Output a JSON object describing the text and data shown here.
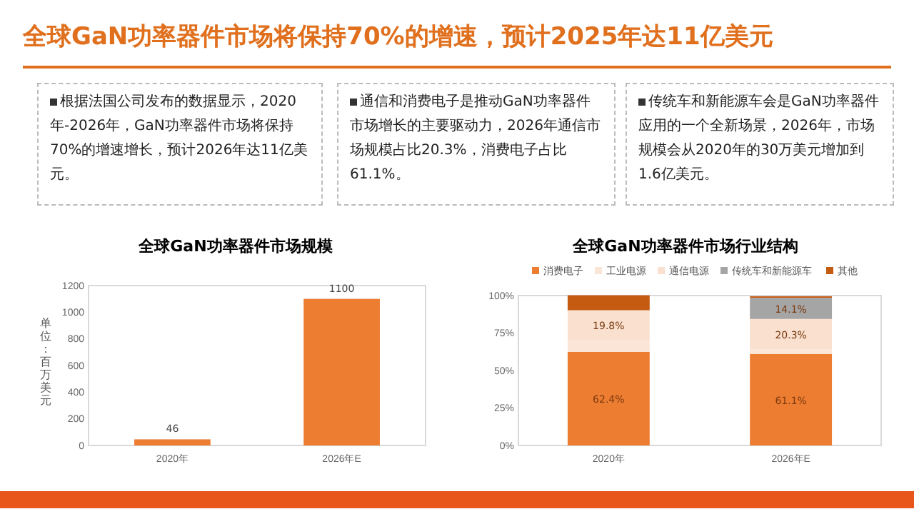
{
  "chart_data": [
    {
      "type": "other",
      "title": "全球GaN功率器件市场将保持70%的增速，预计2025年达11亿美元",
      "annotations": [
        "根据法国公司发布的数据显示，2020年-2026年，GaN功率器件市场将保持70%的增速增长，预计2026年达11亿美元。",
        "通信和消费电子是推动GaN功率器件市场增长的主要驱动力，2026年通信市场规模占比20.3%，消费电子占比61.1%。",
        "传统车和新能源车会是GaN功率器件应用的一个全新场景，2026年，市场规模会从2020年的30万美元增加到1.6亿美元。"
      ]
    },
    {
      "type": "bar",
      "title": "全球GaN功率器件市场规模",
      "ylabel": "单位：百万美元",
      "categories": [
        "2020年",
        "2026年E"
      ],
      "values": [
        46,
        1100
      ],
      "color": "#ed7d31",
      "ylim": [
        0,
        1200
      ],
      "yticks": [
        0,
        200,
        400,
        600,
        800,
        1000,
        1200
      ],
      "data_labels": true
    },
    {
      "type": "bar",
      "title": "全球GaN功率器件市场行业结构",
      "stacked": true,
      "legend": "top",
      "categories": [
        "2020年",
        "2026年E"
      ],
      "series": [
        {
          "name": "消费电子",
          "color": "#ed7d31",
          "values": [
            62.4,
            61.1
          ],
          "value_labels": [
            "62.4%",
            "61.1%"
          ]
        },
        {
          "name": "工业电源",
          "color": "#fbe5d6",
          "values": [
            8,
            3
          ],
          "value_labels": [
            null,
            null
          ]
        },
        {
          "name": "通信电源",
          "color": "#f9e0cf",
          "values": [
            19.8,
            20.3
          ],
          "value_labels": [
            "19.8%",
            "20.3%"
          ]
        },
        {
          "name": "传统车和新能源车",
          "color": "#a5a5a5",
          "values": [
            0,
            14.1
          ],
          "value_labels": [
            null,
            "14.1%"
          ]
        },
        {
          "name": "其他",
          "color": "#c55a11",
          "values": [
            10,
            1
          ],
          "value_labels": [
            null,
            null
          ]
        }
      ],
      "ylim": [
        0,
        100
      ],
      "yticks": [
        {
          "value": 0,
          "label": "0%"
        },
        {
          "value": 25,
          "label": "25%"
        },
        {
          "value": 50,
          "label": "50%"
        },
        {
          "value": 75,
          "label": "75%"
        },
        {
          "value": 100,
          "label": "100%"
        }
      ]
    }
  ]
}
